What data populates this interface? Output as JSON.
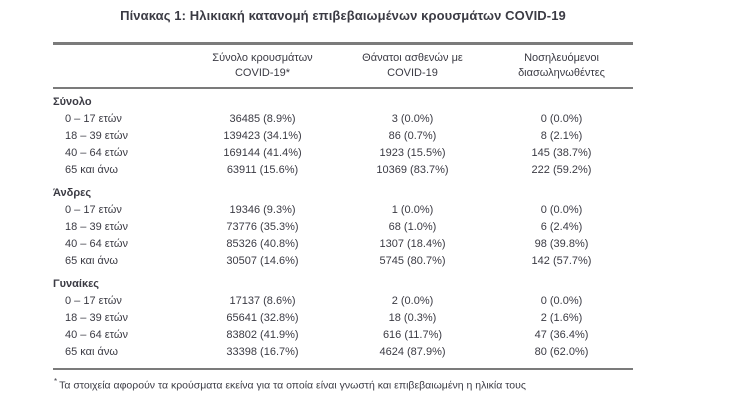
{
  "title": "Πίνακας 1: Ηλικιακή κατανομή επιβεβαιωμένων κρουσμάτων COVID-19",
  "header": {
    "col_cases": {
      "line1": "Σύνολο κρουσμάτων",
      "line2": "COVID-19*"
    },
    "col_deaths": {
      "line1": "Θάνατοι ασθενών με",
      "line2": "COVID-19"
    },
    "col_intubated": {
      "line1": "Νοσηλευόμενοι",
      "line2": "διασωληνωθέντες"
    }
  },
  "sections": [
    {
      "label": "Σύνολο",
      "rows": [
        [
          "0 – 17 ετών",
          "36485 (8.9%)",
          "3 (0.0%)",
          "0 (0.0%)"
        ],
        [
          "18 – 39 ετών",
          "139423 (34.1%)",
          "86 (0.7%)",
          "8 (2.1%)"
        ],
        [
          "40 – 64 ετών",
          "169144 (41.4%)",
          "1923 (15.5%)",
          "145 (38.7%)"
        ],
        [
          "65 και άνω",
          "63911 (15.6%)",
          "10369 (83.7%)",
          "222 (59.2%)"
        ]
      ]
    },
    {
      "label": "Άνδρες",
      "rows": [
        [
          "0 – 17 ετών",
          "19346 (9.3%)",
          "1 (0.0%)",
          "0 (0.0%)"
        ],
        [
          "18 – 39 ετών",
          "73776 (35.3%)",
          "68 (1.0%)",
          "6 (2.4%)"
        ],
        [
          "40 – 64 ετών",
          "85326 (40.8%)",
          "1307 (18.4%)",
          "98 (39.8%)"
        ],
        [
          "65 και άνω",
          "30507 (14.6%)",
          "5745 (80.7%)",
          "142 (57.7%)"
        ]
      ]
    },
    {
      "label": "Γυναίκες",
      "rows": [
        [
          "0 – 17 ετών",
          "17137 (8.6%)",
          "2 (0.0%)",
          "0 (0.0%)"
        ],
        [
          "18 – 39 ετών",
          "65641 (32.8%)",
          "18 (0.3%)",
          "2 (1.6%)"
        ],
        [
          "40 – 64 ετών",
          "83802 (41.9%)",
          "616 (11.7%)",
          "47 (36.4%)"
        ],
        [
          "65 και άνω",
          "33398 (16.7%)",
          "4624 (87.9%)",
          "80 (62.0%)"
        ]
      ]
    }
  ],
  "footnote": {
    "marker": "*",
    "text": "Τα στοιχεία αφορούν τα κρούσματα εκείνα για τα οποία είναι γνωστή και επιβεβαιωμένη η ηλικία τους"
  },
  "colors": {
    "text": "#3b3b44",
    "rule": "#7b7b7b",
    "background": "#ffffff"
  }
}
